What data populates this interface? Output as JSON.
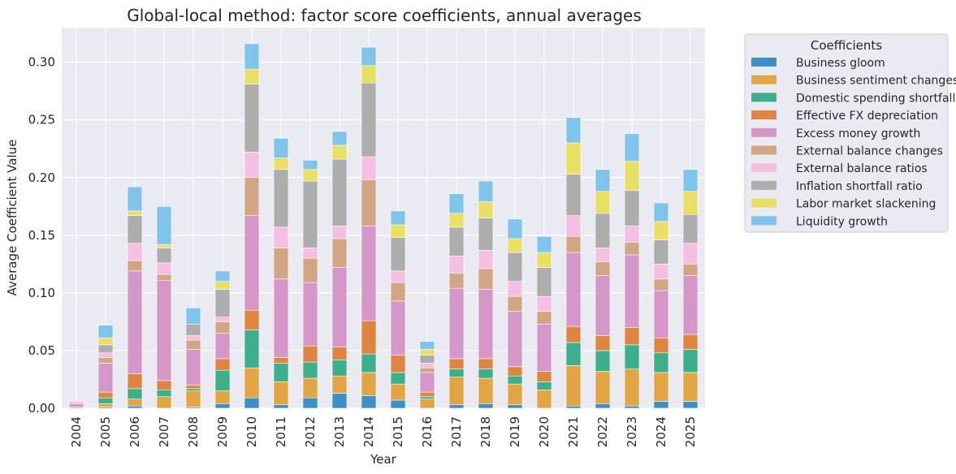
{
  "chart_data": {
    "type": "bar",
    "stacked": true,
    "title": "Global-local method: factor score coefficients, annual averages",
    "xlabel": "Year",
    "ylabel": "Average Coefficient Value",
    "ylim": [
      0,
      0.33
    ],
    "yticks": [
      "0.00",
      "0.05",
      "0.10",
      "0.15",
      "0.20",
      "0.25",
      "0.30"
    ],
    "grid": true,
    "legend_title": "Coefficients",
    "legend_position": "outside-top-right",
    "categories": [
      "2004",
      "2005",
      "2006",
      "2007",
      "2008",
      "2009",
      "2010",
      "2011",
      "2012",
      "2013",
      "2014",
      "2015",
      "2016",
      "2017",
      "2018",
      "2019",
      "2020",
      "2021",
      "2022",
      "2023",
      "2024",
      "2025"
    ],
    "series": [
      {
        "name": "Business gloom",
        "color": "#3d8fc6",
        "values": [
          0.0,
          0.001,
          0.002,
          0.0,
          0.001,
          0.004,
          0.009,
          0.003,
          0.009,
          0.013,
          0.011,
          0.007,
          0.0,
          0.003,
          0.004,
          0.003,
          0.0,
          0.002,
          0.004,
          0.002,
          0.006,
          0.006
        ]
      },
      {
        "name": "Business sentiment changes",
        "color": "#e1a643",
        "values": [
          0.001,
          0.003,
          0.006,
          0.01,
          0.014,
          0.011,
          0.026,
          0.02,
          0.017,
          0.015,
          0.02,
          0.014,
          0.008,
          0.024,
          0.022,
          0.018,
          0.016,
          0.035,
          0.028,
          0.032,
          0.025,
          0.025
        ]
      },
      {
        "name": "Domestic spending shortfall",
        "color": "#3db08b",
        "values": [
          0.0,
          0.005,
          0.009,
          0.006,
          0.002,
          0.018,
          0.033,
          0.016,
          0.014,
          0.014,
          0.016,
          0.01,
          0.002,
          0.007,
          0.008,
          0.007,
          0.007,
          0.02,
          0.018,
          0.021,
          0.017,
          0.02
        ]
      },
      {
        "name": "Effective FX depreciation",
        "color": "#de8542",
        "values": [
          0.0,
          0.005,
          0.013,
          0.008,
          0.003,
          0.01,
          0.017,
          0.005,
          0.014,
          0.011,
          0.029,
          0.015,
          0.004,
          0.009,
          0.009,
          0.008,
          0.009,
          0.014,
          0.013,
          0.015,
          0.013,
          0.013
        ]
      },
      {
        "name": "Excess money growth",
        "color": "#d596c8",
        "values": [
          0.003,
          0.025,
          0.089,
          0.087,
          0.031,
          0.022,
          0.082,
          0.068,
          0.055,
          0.069,
          0.082,
          0.047,
          0.017,
          0.061,
          0.06,
          0.048,
          0.041,
          0.064,
          0.052,
          0.063,
          0.041,
          0.051
        ]
      },
      {
        "name": "External balance changes",
        "color": "#d2a585",
        "values": [
          0.0,
          0.005,
          0.009,
          0.005,
          0.008,
          0.01,
          0.033,
          0.027,
          0.021,
          0.025,
          0.04,
          0.016,
          0.004,
          0.013,
          0.018,
          0.013,
          0.011,
          0.014,
          0.012,
          0.011,
          0.01,
          0.01
        ]
      },
      {
        "name": "External balance ratios",
        "color": "#f5bfe2",
        "values": [
          0.002,
          0.004,
          0.015,
          0.01,
          0.004,
          0.004,
          0.022,
          0.018,
          0.009,
          0.011,
          0.02,
          0.01,
          0.004,
          0.015,
          0.016,
          0.013,
          0.013,
          0.018,
          0.012,
          0.014,
          0.013,
          0.018
        ]
      },
      {
        "name": "Inflation shortfall ratio",
        "color": "#adadad",
        "values": [
          0.0,
          0.007,
          0.024,
          0.013,
          0.01,
          0.024,
          0.059,
          0.05,
          0.058,
          0.058,
          0.064,
          0.029,
          0.007,
          0.025,
          0.028,
          0.025,
          0.025,
          0.036,
          0.03,
          0.031,
          0.021,
          0.025
        ]
      },
      {
        "name": "Labor market slackening",
        "color": "#e8df65",
        "values": [
          0.0,
          0.006,
          0.004,
          0.003,
          0.0,
          0.007,
          0.013,
          0.01,
          0.01,
          0.012,
          0.015,
          0.011,
          0.005,
          0.012,
          0.014,
          0.012,
          0.013,
          0.027,
          0.019,
          0.025,
          0.016,
          0.02
        ]
      },
      {
        "name": "Liquidity growth",
        "color": "#80c4eb",
        "values": [
          0.0,
          0.011,
          0.021,
          0.033,
          0.014,
          0.009,
          0.022,
          0.017,
          0.008,
          0.012,
          0.016,
          0.012,
          0.007,
          0.017,
          0.018,
          0.017,
          0.014,
          0.022,
          0.019,
          0.024,
          0.016,
          0.019
        ]
      }
    ]
  }
}
